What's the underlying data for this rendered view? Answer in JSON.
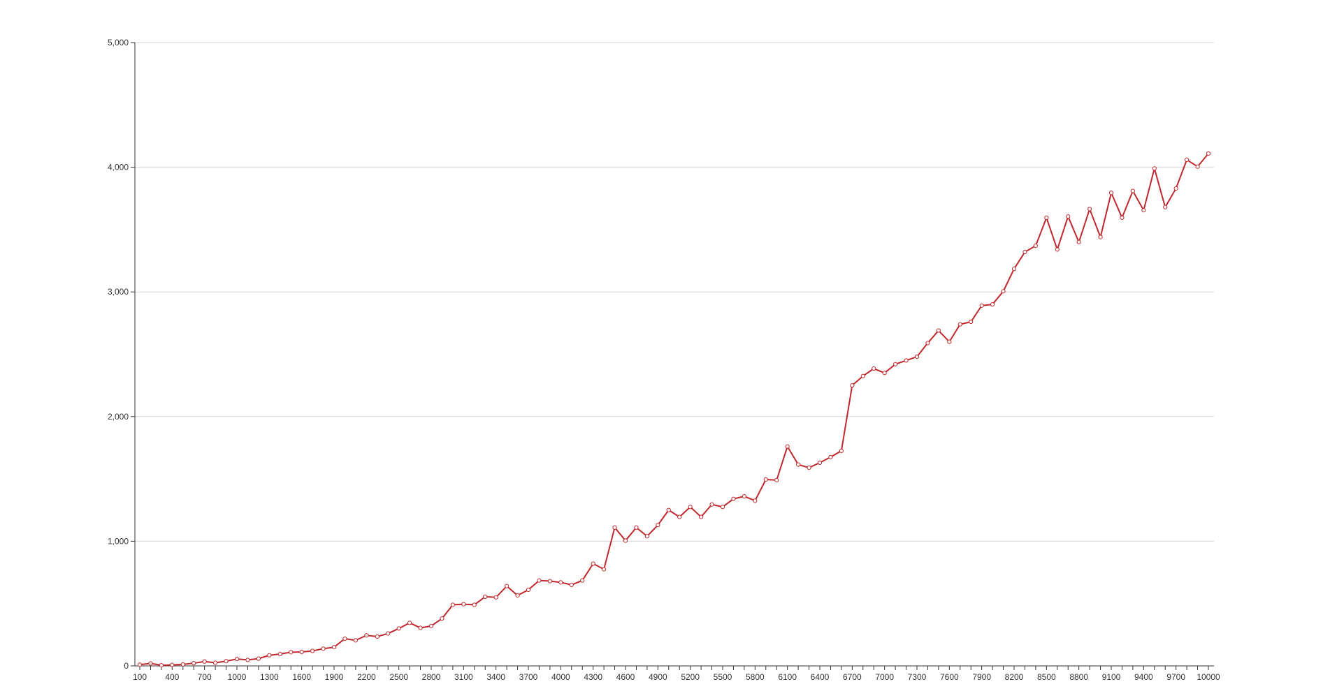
{
  "chart_data": {
    "type": "line",
    "title": "",
    "xlabel": "",
    "ylabel": "",
    "x": [
      100,
      200,
      300,
      400,
      500,
      600,
      700,
      800,
      900,
      1000,
      1100,
      1200,
      1300,
      1400,
      1500,
      1600,
      1700,
      1800,
      1900,
      2000,
      2100,
      2200,
      2300,
      2400,
      2500,
      2600,
      2700,
      2800,
      2900,
      3000,
      3100,
      3200,
      3300,
      3400,
      3500,
      3600,
      3700,
      3800,
      3900,
      4000,
      4100,
      4200,
      4300,
      4400,
      4500,
      4600,
      4700,
      4800,
      4900,
      5000,
      5100,
      5200,
      5300,
      5400,
      5500,
      5600,
      5700,
      5800,
      5900,
      6000,
      6100,
      6200,
      6300,
      6400,
      6500,
      6600,
      6700,
      6800,
      6900,
      7000,
      7100,
      7200,
      7300,
      7400,
      7500,
      7600,
      7700,
      7800,
      7900,
      8000,
      8100,
      8200,
      8300,
      8400,
      8500,
      8600,
      8700,
      8800,
      8900,
      9000,
      9100,
      9200,
      9300,
      9400,
      9500,
      9600,
      9700,
      9800,
      9900,
      10000
    ],
    "x_tick_labels": [
      "100",
      "400",
      "700",
      "1000",
      "1300",
      "1600",
      "1900",
      "2200",
      "2500",
      "2800",
      "3100",
      "3400",
      "3700",
      "4000",
      "4300",
      "4600",
      "4900",
      "5200",
      "5500",
      "5800",
      "6100",
      "6400",
      "6700",
      "7000",
      "7300",
      "7600",
      "7900",
      "8200",
      "8500",
      "8800",
      "9100",
      "9400",
      "9700",
      "10000"
    ],
    "y_tick_labels": [
      "0",
      "1,000",
      "2,000",
      "3,000",
      "4,000",
      "5,000"
    ],
    "y_ticks": [
      0,
      1000,
      2000,
      3000,
      4000,
      5000
    ],
    "ylim": [
      0,
      5000
    ],
    "grid": "horizontal",
    "series": [
      {
        "color": "#c0282d",
        "values": [
          10,
          20,
          5,
          8,
          12,
          22,
          35,
          25,
          38,
          55,
          48,
          58,
          85,
          95,
          110,
          112,
          120,
          138,
          150,
          218,
          205,
          245,
          235,
          260,
          300,
          345,
          305,
          320,
          380,
          490,
          495,
          490,
          555,
          550,
          640,
          565,
          610,
          685,
          680,
          670,
          650,
          685,
          820,
          775,
          1110,
          1005,
          1110,
          1040,
          1130,
          1250,
          1195,
          1275,
          1195,
          1295,
          1275,
          1340,
          1360,
          1325,
          1495,
          1490,
          1760,
          1615,
          1590,
          1630,
          1675,
          1725,
          2250,
          2325,
          2385,
          2350,
          2420,
          2450,
          2480,
          2590,
          2690,
          2600,
          2740,
          2760,
          2890,
          2900,
          3005,
          3185,
          3320,
          3370,
          3595,
          3340,
          3605,
          3400,
          3665,
          3440,
          3795,
          3595,
          3810,
          3655,
          3990,
          3680,
          3830,
          4060,
          4005,
          4110
        ]
      }
    ]
  }
}
